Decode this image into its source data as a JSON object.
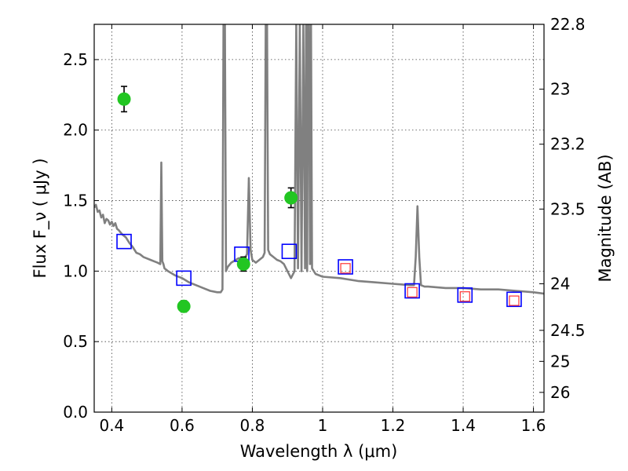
{
  "chart_data": {
    "type": "scatter",
    "xlabel": "Wavelength  λ (μm)",
    "ylabel": "Flux  F_ν  ( μJy )",
    "ylabel_right": "Magnitude (AB)",
    "xlim": [
      0.35,
      1.63
    ],
    "ylim": [
      0.0,
      2.75
    ],
    "x_ticks": [
      0.4,
      0.6,
      0.8,
      1.0,
      1.2,
      1.4,
      1.6
    ],
    "x_tick_labels": [
      "0.4",
      "0.6",
      "0.8",
      "1",
      "1.2",
      "1.4",
      "1.6"
    ],
    "y_ticks": [
      0.0,
      0.5,
      1.0,
      1.5,
      2.0,
      2.5
    ],
    "y_tick_labels": [
      "0.0",
      "0.5",
      "1.0",
      "1.5",
      "2.0",
      "2.5"
    ],
    "right_ticks": [
      {
        "label": "22.8",
        "flux": 2.75
      },
      {
        "label": "23",
        "flux": 2.29
      },
      {
        "label": "23.2",
        "flux": 1.9
      },
      {
        "label": "23.5",
        "flux": 1.44
      },
      {
        "label": "24",
        "flux": 0.91
      },
      {
        "label": "24.5",
        "flux": 0.58
      },
      {
        "label": "25",
        "flux": 0.36
      },
      {
        "label": "26",
        "flux": 0.14
      }
    ],
    "grid": true,
    "observed": {
      "marker": "filled-circle",
      "color": "#22c622",
      "x": [
        0.435,
        0.605,
        0.775,
        0.91
      ],
      "y": [
        2.22,
        0.75,
        1.05,
        1.52
      ],
      "yerr": [
        0.09,
        0.04,
        0.05,
        0.07
      ]
    },
    "model_photometry": {
      "marker": "open-square",
      "color": "#0000ff",
      "x": [
        0.435,
        0.605,
        0.77,
        0.905,
        1.065,
        1.255,
        1.405,
        1.545
      ],
      "y": [
        1.21,
        0.95,
        1.12,
        1.14,
        1.03,
        0.86,
        0.83,
        0.8
      ]
    },
    "inner_markers": {
      "marker": "open-square",
      "color": "#ff3333",
      "x": [
        1.065,
        1.255,
        1.405,
        1.545
      ],
      "y": [
        1.02,
        0.85,
        0.82,
        0.79
      ]
    },
    "spectrum": {
      "color": "#808080",
      "x": [
        0.35,
        0.355,
        0.36,
        0.365,
        0.37,
        0.375,
        0.38,
        0.385,
        0.39,
        0.395,
        0.4,
        0.405,
        0.41,
        0.415,
        0.42,
        0.43,
        0.44,
        0.45,
        0.46,
        0.47,
        0.48,
        0.49,
        0.5,
        0.51,
        0.52,
        0.53,
        0.538,
        0.541,
        0.544,
        0.547,
        0.55,
        0.56,
        0.58,
        0.6,
        0.62,
        0.64,
        0.66,
        0.68,
        0.7,
        0.71,
        0.715,
        0.718,
        0.722,
        0.725,
        0.73,
        0.74,
        0.76,
        0.78,
        0.785,
        0.79,
        0.795,
        0.8,
        0.81,
        0.82,
        0.83,
        0.835,
        0.838,
        0.842,
        0.845,
        0.85,
        0.86,
        0.87,
        0.88,
        0.89,
        0.9,
        0.91,
        0.92,
        0.925,
        0.93,
        0.935,
        0.94,
        0.945,
        0.95,
        0.953,
        0.956,
        0.958,
        0.961,
        0.964,
        0.967,
        0.97,
        0.975,
        0.98,
        1.0,
        1.05,
        1.1,
        1.15,
        1.2,
        1.25,
        1.26,
        1.265,
        1.27,
        1.275,
        1.28,
        1.29,
        1.3,
        1.35,
        1.4,
        1.45,
        1.5,
        1.55,
        1.6,
        1.63
      ],
      "y": [
        1.45,
        1.47,
        1.42,
        1.43,
        1.38,
        1.4,
        1.34,
        1.37,
        1.36,
        1.33,
        1.35,
        1.32,
        1.34,
        1.3,
        1.29,
        1.26,
        1.24,
        1.2,
        1.17,
        1.13,
        1.12,
        1.1,
        1.09,
        1.08,
        1.07,
        1.06,
        1.05,
        1.77,
        1.07,
        1.05,
        1.02,
        1.0,
        0.97,
        0.95,
        0.92,
        0.9,
        0.88,
        0.86,
        0.85,
        0.85,
        0.87,
        2.75,
        2.75,
        1.0,
        1.03,
        1.06,
        1.09,
        1.1,
        1.12,
        1.66,
        1.15,
        1.08,
        1.06,
        1.08,
        1.1,
        1.13,
        2.75,
        2.75,
        1.15,
        1.12,
        1.1,
        1.08,
        1.07,
        1.05,
        1.0,
        0.95,
        1.0,
        2.75,
        1.02,
        2.75,
        1.0,
        2.75,
        1.02,
        2.75,
        1.0,
        2.75,
        2.75,
        1.05,
        2.75,
        1.02,
        1.0,
        0.98,
        0.96,
        0.95,
        0.93,
        0.92,
        0.91,
        0.9,
        0.9,
        1.1,
        1.46,
        1.1,
        0.9,
        0.89,
        0.89,
        0.88,
        0.88,
        0.87,
        0.87,
        0.86,
        0.85,
        0.84
      ]
    }
  }
}
